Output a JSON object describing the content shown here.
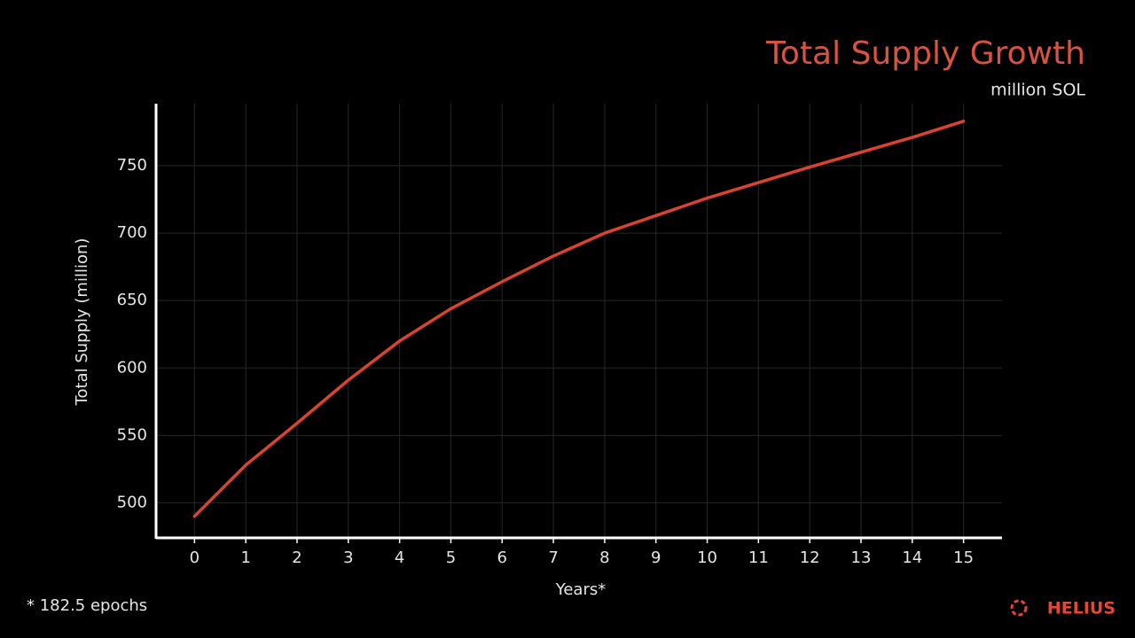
{
  "chart_data": {
    "type": "line",
    "title": "Total Supply Growth",
    "subtitle": "million SOL",
    "y_label": "Total Supply (million)",
    "x_label": "Years*",
    "footnote": "* 182.5 epochs",
    "brand": "HELIUS",
    "x": [
      0,
      1,
      2,
      3,
      4,
      5,
      6,
      7,
      8,
      9,
      10,
      11,
      12,
      13,
      14,
      15
    ],
    "series": [
      {
        "name": "Total Supply",
        "color": "#d9432f",
        "values": [
          490,
          528,
          559,
          591,
          620,
          644,
          664,
          683,
          700,
          713,
          726,
          737.5,
          749,
          760,
          771,
          783
        ]
      }
    ],
    "xlim": [
      -0.75,
      15.75
    ],
    "xticks": [
      0,
      1,
      2,
      3,
      4,
      5,
      6,
      7,
      8,
      9,
      10,
      11,
      12,
      13,
      14,
      15
    ],
    "ylim": [
      474,
      796
    ],
    "yticks": [
      500,
      550,
      600,
      650,
      700,
      750
    ],
    "grid": true
  }
}
